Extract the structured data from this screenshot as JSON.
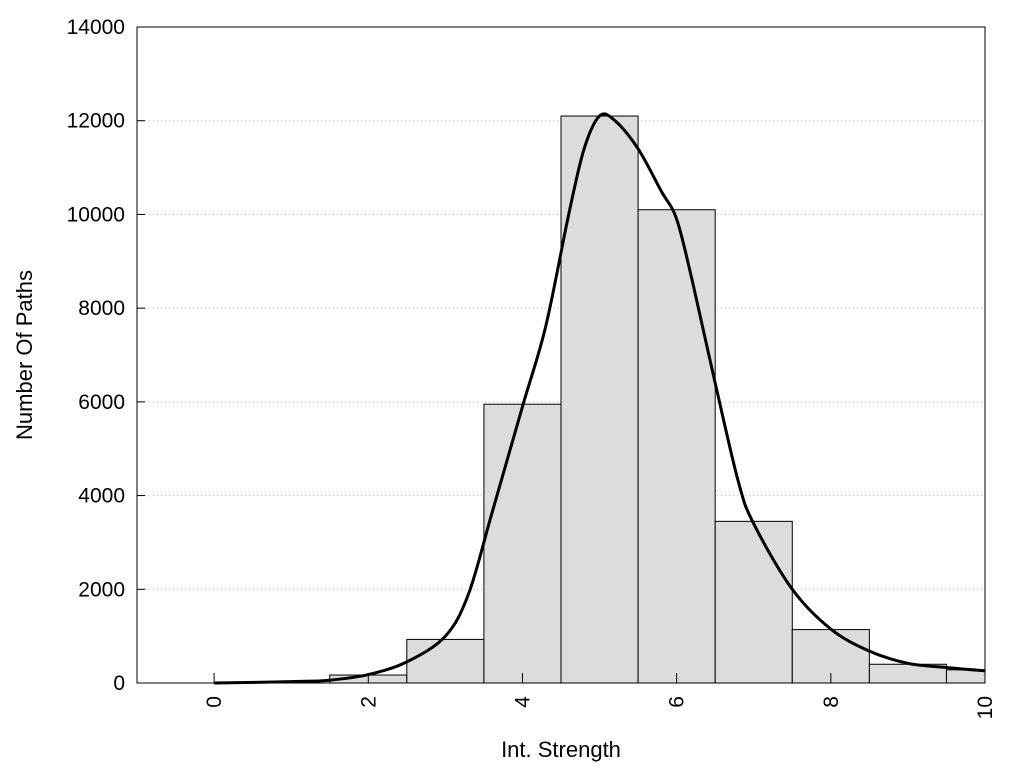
{
  "chart_data": {
    "type": "bar",
    "title": "",
    "xlabel": "Int. Strength",
    "ylabel": "Number Of Paths",
    "xlim": [
      -1,
      10
    ],
    "ylim": [
      0,
      14000
    ],
    "x_ticks": [
      0,
      2,
      4,
      6,
      8,
      10
    ],
    "x_tick_labels": [
      "0",
      "2",
      "4",
      "6",
      "8",
      "10"
    ],
    "y_ticks": [
      0,
      2000,
      4000,
      6000,
      8000,
      10000,
      12000,
      14000
    ],
    "y_tick_labels": [
      "0",
      "2000",
      "4000",
      "6000",
      "8000",
      "10000",
      "12000",
      "14000"
    ],
    "grid": "horizontal dotted",
    "legend": "none",
    "bar_width": 1,
    "bars": [
      {
        "x": 0,
        "value": 0
      },
      {
        "x": 1,
        "value": 0
      },
      {
        "x": 2,
        "value": 170
      },
      {
        "x": 3,
        "value": 930
      },
      {
        "x": 4,
        "value": 5950
      },
      {
        "x": 5,
        "value": 12100
      },
      {
        "x": 6,
        "value": 10100
      },
      {
        "x": 7,
        "value": 3450
      },
      {
        "x": 8,
        "value": 1140
      },
      {
        "x": 9,
        "value": 400
      },
      {
        "x": 10,
        "value": 280
      }
    ],
    "density_curve": {
      "x": [
        0,
        1,
        1.5,
        2,
        2.5,
        3,
        3.3,
        3.6,
        4,
        4.3,
        4.6,
        4.8,
        5,
        5.2,
        5.5,
        5.8,
        6,
        6.2,
        6.5,
        6.8,
        7,
        7.5,
        8,
        8.5,
        9,
        9.5,
        10
      ],
      "y": [
        0,
        30,
        60,
        180,
        450,
        1000,
        1900,
        3600,
        5900,
        7600,
        10000,
        11400,
        12100,
        12000,
        11400,
        10500,
        9900,
        8600,
        6400,
        4300,
        3400,
        2000,
        1150,
        680,
        420,
        330,
        260
      ]
    },
    "colors": {
      "bar_fill": "#dcdcdc",
      "bar_stroke": "#000000",
      "curve": "#000000",
      "grid": "#bbbbbb"
    }
  }
}
